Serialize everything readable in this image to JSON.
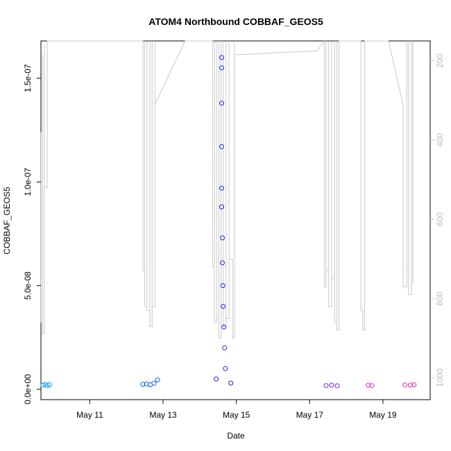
{
  "chart_data": {
    "type": "scatter",
    "title": "ATOM4 Northbound COBBAF_GEOS5",
    "xlabel": "Date",
    "ylabel": "COBBAF_GEOS5",
    "x_ticks": [
      "May 11",
      "May 13",
      "May 15",
      "May 17",
      "May 19"
    ],
    "x_tick_days": [
      11,
      13,
      15,
      17,
      19
    ],
    "y_ticks": [
      "0.0e+00",
      "5.0e-08",
      "1.0e-07",
      "1.5e-07"
    ],
    "y_tick_values": [
      0,
      5e-08,
      1e-07,
      1.5e-07
    ],
    "ylim": [
      -5e-09,
      1.68e-07
    ],
    "xlim": [
      "2016-05-09T16:00",
      "2016-05-20T07:00"
    ],
    "right_axis": {
      "label": "",
      "ticks": [
        "200",
        "400",
        "600",
        "800",
        "1000"
      ],
      "tick_values": [
        200,
        400,
        600,
        800,
        1000
      ],
      "lim": [
        1055,
        150
      ],
      "color": "#c8c8c8"
    },
    "grid": false,
    "legend": "none",
    "series": [
      {
        "values": [
          {
            "day": 9.72,
            "y": 2e-09,
            "color": "#00a0f0"
          },
          {
            "day": 9.78,
            "y": 2.3e-09,
            "color": "#00a0f0"
          },
          {
            "day": 9.84,
            "y": 1.8e-09,
            "color": "#00a0f0"
          },
          {
            "day": 9.9,
            "y": 2.2e-09,
            "color": "#00a0f0"
          },
          {
            "day": 12.45,
            "y": 2.4e-09,
            "color": "#1060f0"
          },
          {
            "day": 12.55,
            "y": 2.6e-09,
            "color": "#1060f0"
          },
          {
            "day": 12.65,
            "y": 2.2e-09,
            "color": "#1060f0"
          },
          {
            "day": 12.75,
            "y": 2.9e-09,
            "color": "#1060f0"
          },
          {
            "day": 12.85,
            "y": 4.5e-09,
            "color": "#1060f0"
          },
          {
            "day": 14.45,
            "y": 5e-09,
            "color": "#2020f0"
          },
          {
            "day": 14.6,
            "y": 1.6e-07,
            "color": "#2020f0"
          },
          {
            "day": 14.6,
            "y": 1.55e-07,
            "color": "#2020f0"
          },
          {
            "day": 14.6,
            "y": 1.38e-07,
            "color": "#2020f0"
          },
          {
            "day": 14.6,
            "y": 1.17e-07,
            "color": "#2020f0"
          },
          {
            "day": 14.6,
            "y": 9.7e-08,
            "color": "#2020f0"
          },
          {
            "day": 14.6,
            "y": 8.8e-08,
            "color": "#2020f0"
          },
          {
            "day": 14.62,
            "y": 7.3e-08,
            "color": "#2020f0"
          },
          {
            "day": 14.62,
            "y": 6.1e-08,
            "color": "#2020f0"
          },
          {
            "day": 14.63,
            "y": 5e-08,
            "color": "#2020f0"
          },
          {
            "day": 14.64,
            "y": 4e-08,
            "color": "#2020f0"
          },
          {
            "day": 14.66,
            "y": 3e-08,
            "color": "#2020f0"
          },
          {
            "day": 14.68,
            "y": 2e-08,
            "color": "#2020f0"
          },
          {
            "day": 14.7,
            "y": 1e-08,
            "color": "#2020f0"
          },
          {
            "day": 14.85,
            "y": 3e-09,
            "color": "#2020f0"
          },
          {
            "day": 17.45,
            "y": 1.8e-09,
            "color": "#7020f0"
          },
          {
            "day": 17.6,
            "y": 2e-09,
            "color": "#7020f0"
          },
          {
            "day": 17.75,
            "y": 1.7e-09,
            "color": "#7020f0"
          },
          {
            "day": 18.6,
            "y": 2e-09,
            "color": "#e020e0"
          },
          {
            "day": 18.7,
            "y": 1.8e-09,
            "color": "#e020e0"
          },
          {
            "day": 19.6,
            "y": 2.1e-09,
            "color": "#f020b0"
          },
          {
            "day": 19.75,
            "y": 2e-09,
            "color": "#f020b0"
          },
          {
            "day": 19.85,
            "y": 2.2e-09,
            "color": "#f020b0"
          }
        ]
      }
    ],
    "pressure_profile": {
      "color": "#c8c8c8",
      "points": [
        [
          9.67,
          380
        ],
        [
          9.67,
          860
        ],
        [
          9.71,
          860
        ],
        [
          9.71,
          185
        ],
        [
          9.71,
          890
        ],
        [
          9.76,
          890
        ],
        [
          9.76,
          160
        ],
        [
          9.76,
          520
        ],
        [
          9.84,
          520
        ],
        [
          9.84,
          150
        ],
        [
          12.45,
          150
        ],
        [
          12.45,
          730
        ],
        [
          12.5,
          730
        ],
        [
          12.5,
          150
        ],
        [
          12.5,
          820
        ],
        [
          12.56,
          820
        ],
        [
          12.56,
          150
        ],
        [
          12.56,
          830
        ],
        [
          12.64,
          830
        ],
        [
          12.64,
          150
        ],
        [
          12.64,
          870
        ],
        [
          12.7,
          870
        ],
        [
          12.7,
          150
        ],
        [
          12.7,
          820
        ],
        [
          12.78,
          820
        ],
        [
          12.78,
          150
        ],
        [
          12.78,
          310
        ],
        [
          13.6,
          150
        ],
        [
          14.35,
          150
        ],
        [
          14.35,
          720
        ],
        [
          14.4,
          720
        ],
        [
          14.4,
          150
        ],
        [
          14.4,
          860
        ],
        [
          14.46,
          860
        ],
        [
          14.46,
          150
        ],
        [
          14.46,
          850
        ],
        [
          14.52,
          850
        ],
        [
          14.52,
          150
        ],
        [
          14.52,
          900
        ],
        [
          14.58,
          900
        ],
        [
          14.58,
          150
        ],
        [
          14.58,
          820
        ],
        [
          14.64,
          820
        ],
        [
          14.64,
          150
        ],
        [
          14.64,
          870
        ],
        [
          14.72,
          870
        ],
        [
          14.72,
          150
        ],
        [
          14.72,
          850
        ],
        [
          14.8,
          850
        ],
        [
          14.8,
          150
        ],
        [
          14.8,
          700
        ],
        [
          14.9,
          700
        ],
        [
          14.9,
          900
        ],
        [
          14.95,
          900
        ],
        [
          14.95,
          150
        ],
        [
          14.95,
          185
        ],
        [
          17.2,
          175
        ],
        [
          17.4,
          150
        ],
        [
          17.4,
          770
        ],
        [
          17.45,
          770
        ],
        [
          17.45,
          150
        ],
        [
          17.45,
          730
        ],
        [
          17.52,
          730
        ],
        [
          17.52,
          150
        ],
        [
          17.52,
          820
        ],
        [
          17.6,
          820
        ],
        [
          17.6,
          150
        ],
        [
          17.6,
          750
        ],
        [
          17.68,
          750
        ],
        [
          17.68,
          150
        ],
        [
          17.68,
          860
        ],
        [
          17.74,
          860
        ],
        [
          17.74,
          150
        ],
        [
          17.74,
          880
        ],
        [
          17.8,
          880
        ],
        [
          17.8,
          150
        ],
        [
          18.4,
          150
        ],
        [
          18.4,
          830
        ],
        [
          18.45,
          830
        ],
        [
          18.45,
          880
        ],
        [
          18.5,
          880
        ],
        [
          18.5,
          150
        ],
        [
          19.15,
          150
        ],
        [
          19.55,
          310
        ],
        [
          19.55,
          770
        ],
        [
          19.65,
          770
        ],
        [
          19.65,
          150
        ],
        [
          19.65,
          720
        ],
        [
          19.7,
          720
        ],
        [
          19.7,
          150
        ],
        [
          19.7,
          790
        ],
        [
          19.78,
          790
        ],
        [
          19.78,
          150
        ],
        [
          19.78,
          760
        ],
        [
          19.82,
          760
        ],
        [
          19.82,
          150
        ]
      ]
    }
  }
}
